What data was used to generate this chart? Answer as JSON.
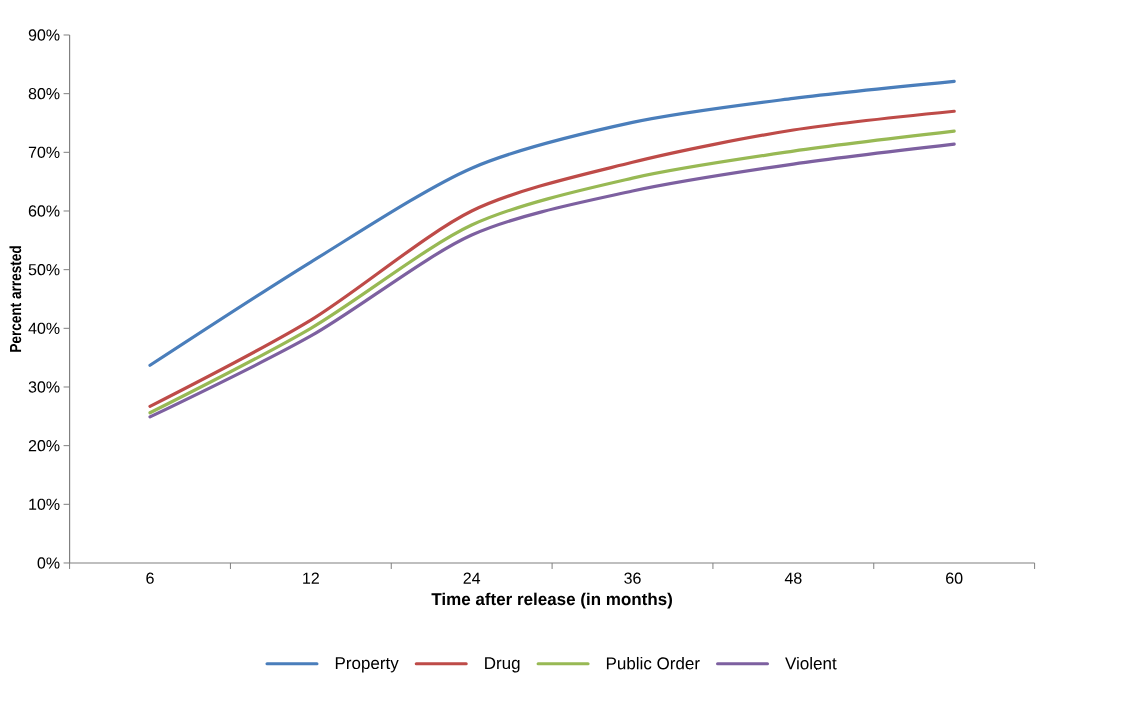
{
  "chart_data": {
    "type": "line",
    "xlabel": "Time after release (in months)",
    "ylabel": "Percent arrested",
    "categories": [
      "6",
      "12",
      "24",
      "36",
      "48",
      "60"
    ],
    "ylim": [
      0,
      90
    ],
    "yticks": [
      {
        "value": 0,
        "label": "0%"
      },
      {
        "value": 10,
        "label": "10%"
      },
      {
        "value": 20,
        "label": "20%"
      },
      {
        "value": 30,
        "label": "30%"
      },
      {
        "value": 40,
        "label": "40%"
      },
      {
        "value": 50,
        "label": "50%"
      },
      {
        "value": 60,
        "label": "60%"
      },
      {
        "value": 70,
        "label": "70%"
      },
      {
        "value": 80,
        "label": "80%"
      },
      {
        "value": 90,
        "label": "90%"
      }
    ],
    "series": [
      {
        "name": "Property",
        "color": "#4a7ebb",
        "values": [
          33.7,
          51.3,
          67.3,
          75.1,
          79.2,
          82.1
        ]
      },
      {
        "name": "Drug",
        "color": "#be4b48",
        "values": [
          26.7,
          41.4,
          60.0,
          68.3,
          73.8,
          77.0
        ]
      },
      {
        "name": "Public Order",
        "color": "#98b954",
        "values": [
          25.6,
          40.0,
          57.6,
          65.6,
          70.2,
          73.6
        ]
      },
      {
        "name": "Violent",
        "color": "#7d60a0",
        "values": [
          24.9,
          38.7,
          55.9,
          63.4,
          68.0,
          71.4
        ]
      }
    ],
    "grid": false,
    "legend": "bottom",
    "marker": "none",
    "line_style": "solid"
  }
}
